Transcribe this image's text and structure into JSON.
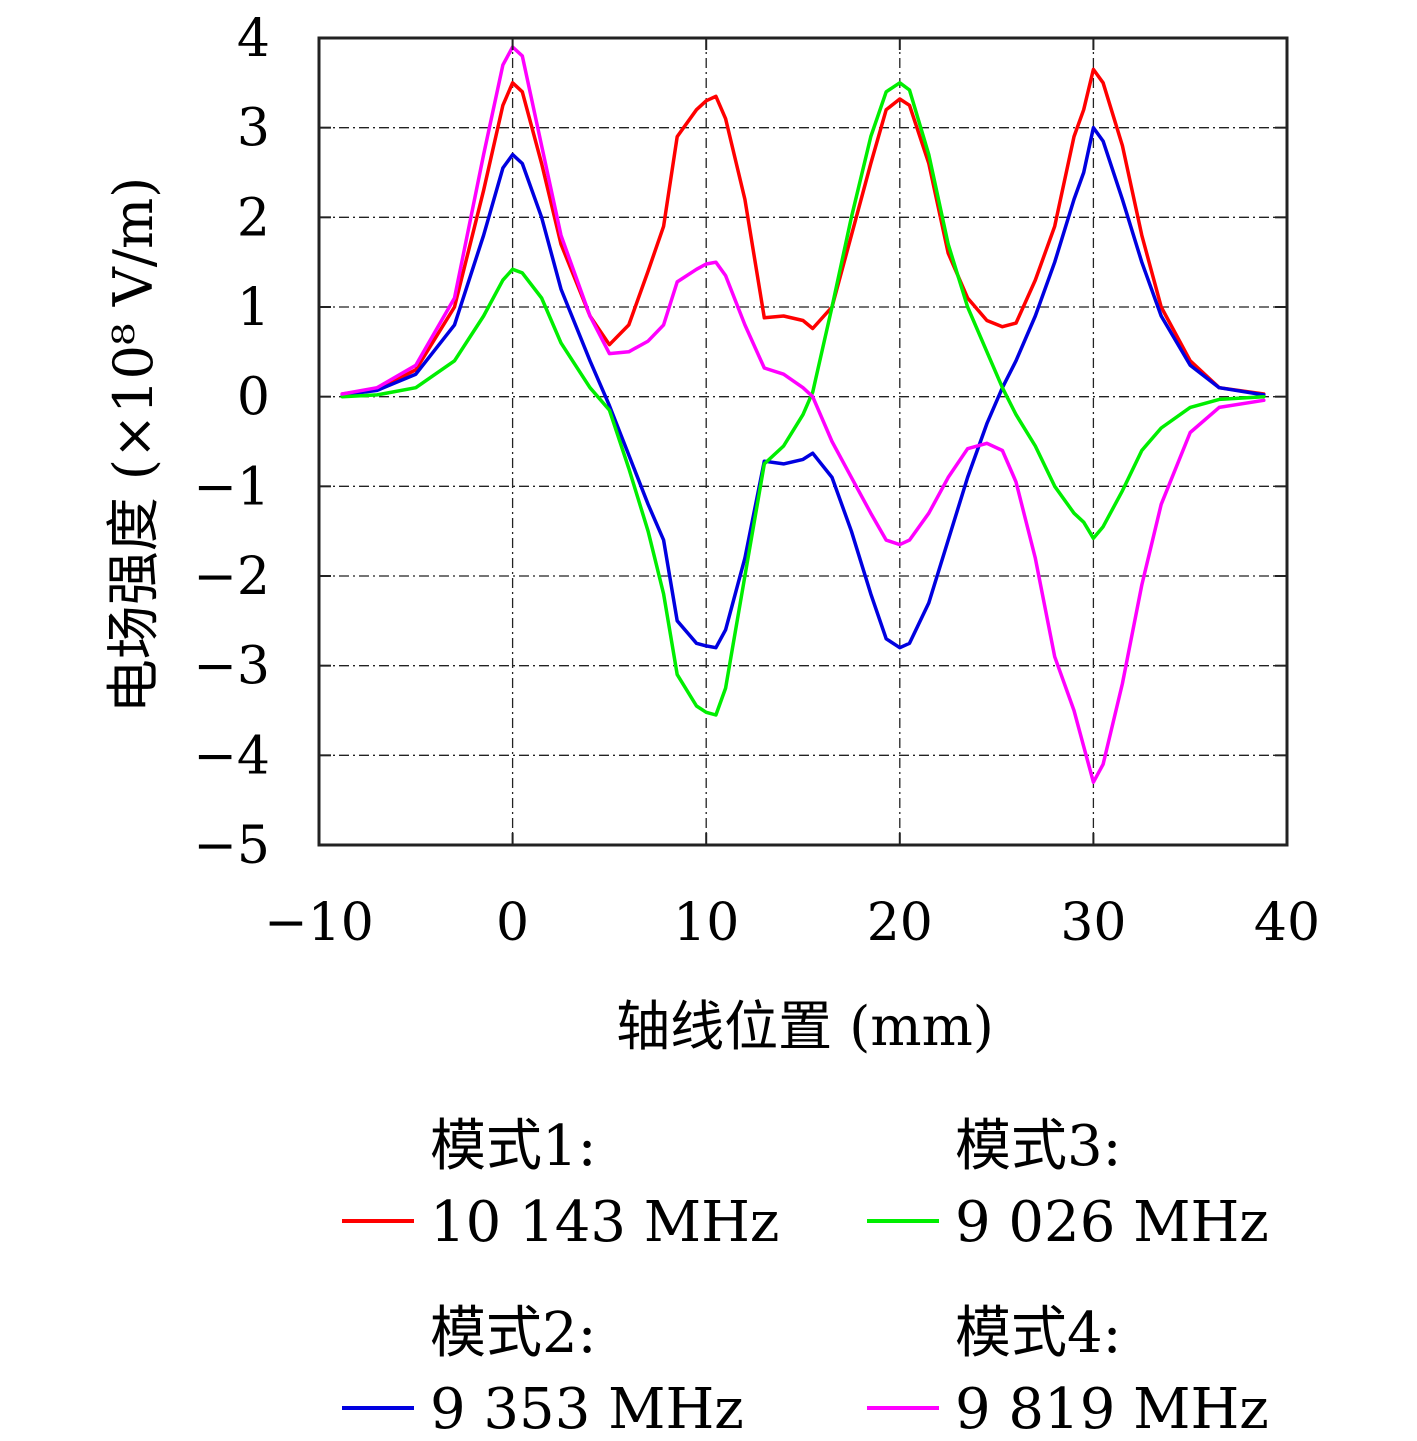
{
  "chart_data": {
    "type": "line",
    "xlabel": "轴线位置 (mm)",
    "ylabel": "电场强度 (×10⁸ V/m)",
    "xlim": [
      -10,
      40
    ],
    "ylim": [
      -5,
      4
    ],
    "xticks": [
      -10,
      0,
      10,
      20,
      30,
      40
    ],
    "yticks": [
      -5,
      -4,
      -3,
      -2,
      -1,
      0,
      1,
      2,
      3,
      4
    ],
    "xtick_labels": [
      "−10",
      "0",
      "10",
      "20",
      "30",
      "40"
    ],
    "ytick_labels": [
      "−5",
      "−4",
      "−3",
      "−2",
      "−1",
      "0",
      "1",
      "2",
      "3",
      "4"
    ],
    "grid": true,
    "legend_position": "bottom",
    "series": [
      {
        "name": "模式1:",
        "freq": "10 143 MHz",
        "color": "#ff0000",
        "points": [
          [
            -8.8,
            0.03
          ],
          [
            -7,
            0.08
          ],
          [
            -5,
            0.3
          ],
          [
            -3,
            1.0
          ],
          [
            -1.5,
            2.3
          ],
          [
            -0.5,
            3.25
          ],
          [
            0,
            3.5
          ],
          [
            0.5,
            3.4
          ],
          [
            1.5,
            2.6
          ],
          [
            2.5,
            1.7
          ],
          [
            4,
            0.9
          ],
          [
            5,
            0.58
          ],
          [
            6,
            0.8
          ],
          [
            7,
            1.4
          ],
          [
            7.8,
            1.9
          ],
          [
            8.5,
            2.9
          ],
          [
            9.5,
            3.2
          ],
          [
            10,
            3.3
          ],
          [
            10.5,
            3.35
          ],
          [
            11,
            3.1
          ],
          [
            12,
            2.2
          ],
          [
            13,
            0.88
          ],
          [
            14,
            0.9
          ],
          [
            15,
            0.85
          ],
          [
            15.5,
            0.76
          ],
          [
            16.5,
            1.0
          ],
          [
            17.5,
            1.8
          ],
          [
            18.5,
            2.6
          ],
          [
            19.3,
            3.2
          ],
          [
            20,
            3.32
          ],
          [
            20.5,
            3.25
          ],
          [
            21.5,
            2.6
          ],
          [
            22.5,
            1.6
          ],
          [
            23.5,
            1.1
          ],
          [
            24.5,
            0.85
          ],
          [
            25.3,
            0.78
          ],
          [
            26,
            0.82
          ],
          [
            27,
            1.3
          ],
          [
            28,
            1.9
          ],
          [
            29,
            2.9
          ],
          [
            29.5,
            3.2
          ],
          [
            30,
            3.65
          ],
          [
            30.5,
            3.5
          ],
          [
            31.5,
            2.8
          ],
          [
            32.5,
            1.8
          ],
          [
            33.5,
            1.0
          ],
          [
            35,
            0.4
          ],
          [
            36.5,
            0.1
          ],
          [
            38.8,
            0.03
          ]
        ]
      },
      {
        "name": "模式2:",
        "freq": "9 353 MHz",
        "color": "#0000e0",
        "points": [
          [
            -8.8,
            0.02
          ],
          [
            -7,
            0.07
          ],
          [
            -5,
            0.25
          ],
          [
            -3,
            0.8
          ],
          [
            -1.5,
            1.8
          ],
          [
            -0.5,
            2.55
          ],
          [
            0,
            2.7
          ],
          [
            0.5,
            2.6
          ],
          [
            1.5,
            2.0
          ],
          [
            2.5,
            1.2
          ],
          [
            4,
            0.4
          ],
          [
            5,
            -0.1
          ],
          [
            6,
            -0.65
          ],
          [
            7,
            -1.2
          ],
          [
            7.8,
            -1.6
          ],
          [
            8.5,
            -2.5
          ],
          [
            9.5,
            -2.75
          ],
          [
            10,
            -2.78
          ],
          [
            10.5,
            -2.8
          ],
          [
            11,
            -2.6
          ],
          [
            12,
            -1.8
          ],
          [
            13,
            -0.72
          ],
          [
            14,
            -0.75
          ],
          [
            15,
            -0.7
          ],
          [
            15.5,
            -0.63
          ],
          [
            16.5,
            -0.9
          ],
          [
            17.5,
            -1.5
          ],
          [
            18.5,
            -2.2
          ],
          [
            19.3,
            -2.7
          ],
          [
            20,
            -2.8
          ],
          [
            20.5,
            -2.75
          ],
          [
            21.5,
            -2.3
          ],
          [
            22.5,
            -1.6
          ],
          [
            23.5,
            -0.9
          ],
          [
            24.5,
            -0.3
          ],
          [
            25.3,
            0.1
          ],
          [
            26,
            0.4
          ],
          [
            27,
            0.9
          ],
          [
            28,
            1.5
          ],
          [
            29,
            2.2
          ],
          [
            29.5,
            2.5
          ],
          [
            30,
            3.0
          ],
          [
            30.5,
            2.85
          ],
          [
            31.5,
            2.2
          ],
          [
            32.5,
            1.5
          ],
          [
            33.5,
            0.9
          ],
          [
            35,
            0.35
          ],
          [
            36.5,
            0.1
          ],
          [
            38.8,
            0.02
          ]
        ]
      },
      {
        "name": "模式3:",
        "freq": "9 026 MHz",
        "color": "#00ee00",
        "points": [
          [
            -8.8,
            0.0
          ],
          [
            -7,
            0.02
          ],
          [
            -5,
            0.1
          ],
          [
            -3,
            0.4
          ],
          [
            -1.5,
            0.9
          ],
          [
            -0.5,
            1.3
          ],
          [
            0,
            1.42
          ],
          [
            0.5,
            1.38
          ],
          [
            1.5,
            1.1
          ],
          [
            2.5,
            0.6
          ],
          [
            4,
            0.1
          ],
          [
            5,
            -0.15
          ],
          [
            6,
            -0.8
          ],
          [
            7,
            -1.5
          ],
          [
            7.8,
            -2.2
          ],
          [
            8.5,
            -3.1
          ],
          [
            9.5,
            -3.45
          ],
          [
            10,
            -3.52
          ],
          [
            10.5,
            -3.55
          ],
          [
            11,
            -3.25
          ],
          [
            12,
            -2.0
          ],
          [
            13,
            -0.75
          ],
          [
            14,
            -0.55
          ],
          [
            15,
            -0.2
          ],
          [
            15.5,
            0.05
          ],
          [
            16.5,
            1.0
          ],
          [
            17.5,
            2.0
          ],
          [
            18.5,
            2.9
          ],
          [
            19.3,
            3.4
          ],
          [
            20,
            3.5
          ],
          [
            20.5,
            3.42
          ],
          [
            21.5,
            2.7
          ],
          [
            22.5,
            1.7
          ],
          [
            23.5,
            1.0
          ],
          [
            24.5,
            0.5
          ],
          [
            25.3,
            0.1
          ],
          [
            26,
            -0.2
          ],
          [
            27,
            -0.55
          ],
          [
            28,
            -1.0
          ],
          [
            29,
            -1.3
          ],
          [
            29.5,
            -1.4
          ],
          [
            30,
            -1.58
          ],
          [
            30.5,
            -1.45
          ],
          [
            31.5,
            -1.05
          ],
          [
            32.5,
            -0.6
          ],
          [
            33.5,
            -0.35
          ],
          [
            35,
            -0.12
          ],
          [
            36.5,
            -0.03
          ],
          [
            38.8,
            0.0
          ]
        ]
      },
      {
        "name": "模式4:",
        "freq": "9 819 MHz",
        "color": "#ff00ff",
        "points": [
          [
            -8.8,
            0.03
          ],
          [
            -7,
            0.1
          ],
          [
            -5,
            0.35
          ],
          [
            -3,
            1.1
          ],
          [
            -1.5,
            2.7
          ],
          [
            -0.5,
            3.7
          ],
          [
            0,
            3.9
          ],
          [
            0.5,
            3.8
          ],
          [
            1.5,
            2.8
          ],
          [
            2.5,
            1.8
          ],
          [
            4,
            0.9
          ],
          [
            5,
            0.48
          ],
          [
            6,
            0.5
          ],
          [
            7,
            0.62
          ],
          [
            7.8,
            0.8
          ],
          [
            8.5,
            1.28
          ],
          [
            9.5,
            1.42
          ],
          [
            10,
            1.48
          ],
          [
            10.5,
            1.5
          ],
          [
            11,
            1.35
          ],
          [
            12,
            0.8
          ],
          [
            13,
            0.32
          ],
          [
            14,
            0.25
          ],
          [
            15,
            0.1
          ],
          [
            15.5,
            0.0
          ],
          [
            16.5,
            -0.5
          ],
          [
            17.5,
            -0.9
          ],
          [
            18.5,
            -1.3
          ],
          [
            19.3,
            -1.6
          ],
          [
            20,
            -1.65
          ],
          [
            20.5,
            -1.6
          ],
          [
            21.5,
            -1.3
          ],
          [
            22.5,
            -0.9
          ],
          [
            23.5,
            -0.58
          ],
          [
            24.5,
            -0.52
          ],
          [
            25.3,
            -0.6
          ],
          [
            26,
            -0.95
          ],
          [
            27,
            -1.8
          ],
          [
            28,
            -2.9
          ],
          [
            29,
            -3.5
          ],
          [
            29.5,
            -3.9
          ],
          [
            30,
            -4.3
          ],
          [
            30.5,
            -4.1
          ],
          [
            31.5,
            -3.2
          ],
          [
            32.5,
            -2.1
          ],
          [
            33.5,
            -1.2
          ],
          [
            35,
            -0.4
          ],
          [
            36.5,
            -0.12
          ],
          [
            38.8,
            -0.04
          ]
        ]
      }
    ]
  }
}
